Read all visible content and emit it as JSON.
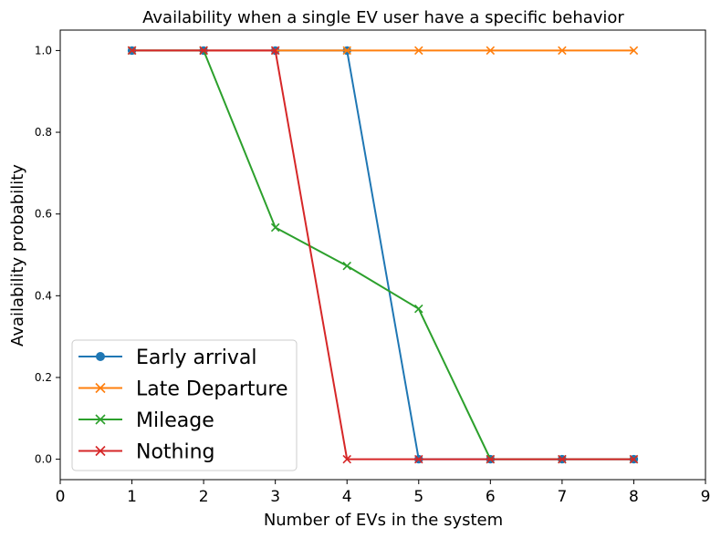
{
  "chart_data": {
    "type": "line",
    "title": "Availability when a single EV user have a specific behavior",
    "xlabel": "Number of EVs in the system",
    "ylabel": "Availability probability",
    "xlim": [
      0,
      9
    ],
    "ylim": [
      -0.05,
      1.05
    ],
    "xticks": [
      0,
      1,
      2,
      3,
      4,
      5,
      6,
      7,
      8,
      9
    ],
    "yticks": [
      0.0,
      0.2,
      0.4,
      0.6,
      0.8,
      1.0
    ],
    "ytick_labels": [
      "0.0",
      "0.2",
      "0.4",
      "0.6",
      "0.8",
      "1.0"
    ],
    "grid": false,
    "legend_position": "lower-left",
    "x": [
      1,
      2,
      3,
      4,
      5,
      6,
      7,
      8
    ],
    "series": [
      {
        "name": "Early arrival",
        "color": "#1f77b4",
        "marker": "circle",
        "values": [
          1.0,
          1.0,
          1.0,
          1.0,
          0.0,
          0.0,
          0.0,
          0.0
        ]
      },
      {
        "name": "Late Departure",
        "color": "#ff7f0e",
        "marker": "x",
        "values": [
          1.0,
          1.0,
          1.0,
          1.0,
          1.0,
          1.0,
          1.0,
          1.0
        ]
      },
      {
        "name": "Mileage",
        "color": "#2ca02c",
        "marker": "x",
        "values": [
          1.0,
          1.0,
          0.567,
          0.473,
          0.368,
          0.0,
          0.0,
          0.0
        ]
      },
      {
        "name": "Nothing",
        "color": "#d62728",
        "marker": "x",
        "values": [
          1.0,
          1.0,
          1.0,
          0.0,
          0.0,
          0.0,
          0.0,
          0.0
        ]
      }
    ]
  }
}
